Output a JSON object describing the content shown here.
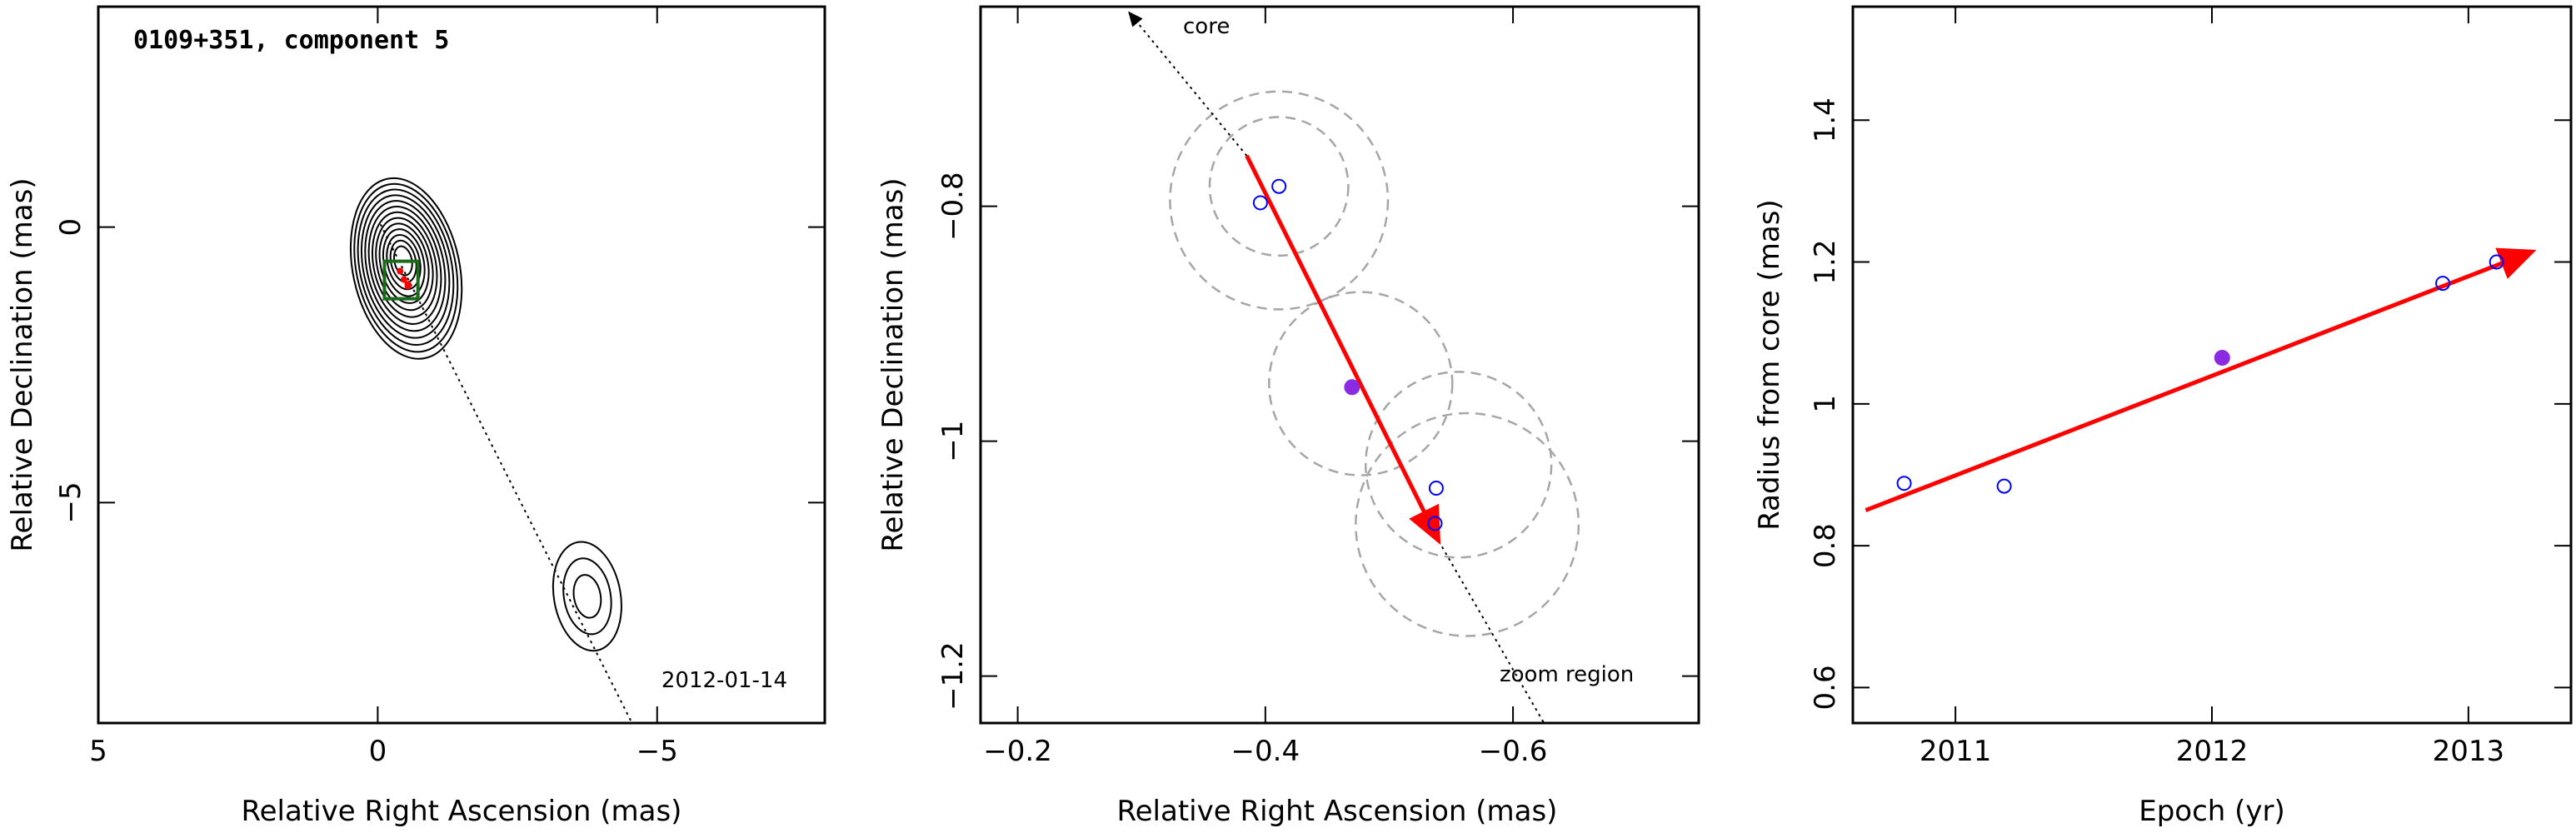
{
  "colors": {
    "frame": "#000000",
    "arrow": "#ff0000",
    "open_marker": "#0000ff",
    "filled_marker": "#8a2be2",
    "circle": "#a6a6a6",
    "box": "#1a6b1a"
  },
  "chart_data": [
    {
      "type": "contour-map",
      "title": "0109+351, component 5",
      "annotation": "2012-01-14",
      "xlabel": "Relative Right Ascension (mas)",
      "ylabel": "Relative Declination (mas)",
      "xlim": [
        5,
        -8
      ],
      "ylim": [
        -9,
        4
      ],
      "xticks": [
        5,
        0,
        -5
      ],
      "xtick_labels": [
        "5",
        "0",
        "−5"
      ],
      "yticks": [
        0,
        -5
      ],
      "ytick_labels": [
        "0",
        "−5"
      ],
      "jet_line": {
        "from": [
          -0.05,
          0.05
        ],
        "to": [
          -4.55,
          -9.0
        ]
      },
      "zoom_box": {
        "ra": [
          -0.12,
          -0.72
        ],
        "dec": [
          -0.62,
          -1.3
        ]
      },
      "main_component": {
        "ra": -0.45,
        "dec": -0.6,
        "levels": 13
      },
      "secondary_component": {
        "ra": -3.75,
        "dec": -6.7,
        "levels": 3
      },
      "component_points": [
        {
          "ra": -0.4,
          "dec": -0.8
        },
        {
          "ra": -0.47,
          "dec": -0.95
        },
        {
          "ra": -0.54,
          "dec": -1.04
        },
        {
          "ra": -0.54,
          "dec": -1.07
        }
      ]
    },
    {
      "type": "scatter",
      "xlabel": "Relative Right Ascension (mas)",
      "ylabel": "Relative Declination (mas)",
      "xlim": [
        -0.17,
        -0.75
      ],
      "ylim": [
        -1.24,
        -0.63
      ],
      "xticks": [
        -0.2,
        -0.4,
        -0.6
      ],
      "xtick_labels": [
        "−0.2",
        "−0.4",
        "−0.6"
      ],
      "yticks": [
        -0.8,
        -1.0,
        -1.2
      ],
      "ytick_labels": [
        "−0.8",
        "−1",
        "−1.2"
      ],
      "labels": {
        "core": "core",
        "zoom": "zoom region"
      },
      "points_open": [
        {
          "x": -0.396,
          "y": -0.797
        },
        {
          "x": -0.411,
          "y": -0.783
        },
        {
          "x": -0.538,
          "y": -1.04
        },
        {
          "x": -0.537,
          "y": -1.07
        }
      ],
      "points_filled": [
        {
          "x": -0.47,
          "y": -0.954
        }
      ],
      "circles": [
        {
          "cx": -0.411,
          "cy": -0.783,
          "r": 0.056
        },
        {
          "cx": -0.411,
          "cy": -0.795,
          "r": 0.088
        },
        {
          "cx": -0.477,
          "cy": -0.951,
          "r": 0.074
        },
        {
          "cx": -0.556,
          "cy": -1.02,
          "r": 0.075
        },
        {
          "cx": -0.563,
          "cy": -1.071,
          "r": 0.09
        }
      ],
      "arrow": {
        "from": [
          -0.385,
          -0.757
        ],
        "to": [
          -0.54,
          -1.085
        ]
      },
      "jet_line": {
        "from": [
          -0.29,
          -0.635
        ],
        "to": [
          -0.625,
          -1.24
        ]
      }
    },
    {
      "type": "scatter",
      "xlabel": "Epoch (yr)",
      "ylabel": "Radius from core (mas)",
      "xlim": [
        2010.6,
        2013.4
      ],
      "ylim": [
        0.55,
        1.56
      ],
      "xticks": [
        2011,
        2012,
        2013
      ],
      "xtick_labels": [
        "2011",
        "2012",
        "2013"
      ],
      "yticks": [
        0.6,
        0.8,
        1.0,
        1.2,
        1.4
      ],
      "ytick_labels": [
        "0.6",
        "0.8",
        "1",
        "1.2",
        "1.4"
      ],
      "points_open": [
        {
          "x": 2010.8,
          "y": 0.888
        },
        {
          "x": 2011.19,
          "y": 0.884
        },
        {
          "x": 2012.9,
          "y": 1.17
        },
        {
          "x": 2013.11,
          "y": 1.2
        }
      ],
      "points_filled": [
        {
          "x": 2012.04,
          "y": 1.065
        }
      ],
      "fit_line": {
        "from": [
          2010.65,
          0.85
        ],
        "to": [
          2013.25,
          1.215
        ]
      }
    }
  ]
}
